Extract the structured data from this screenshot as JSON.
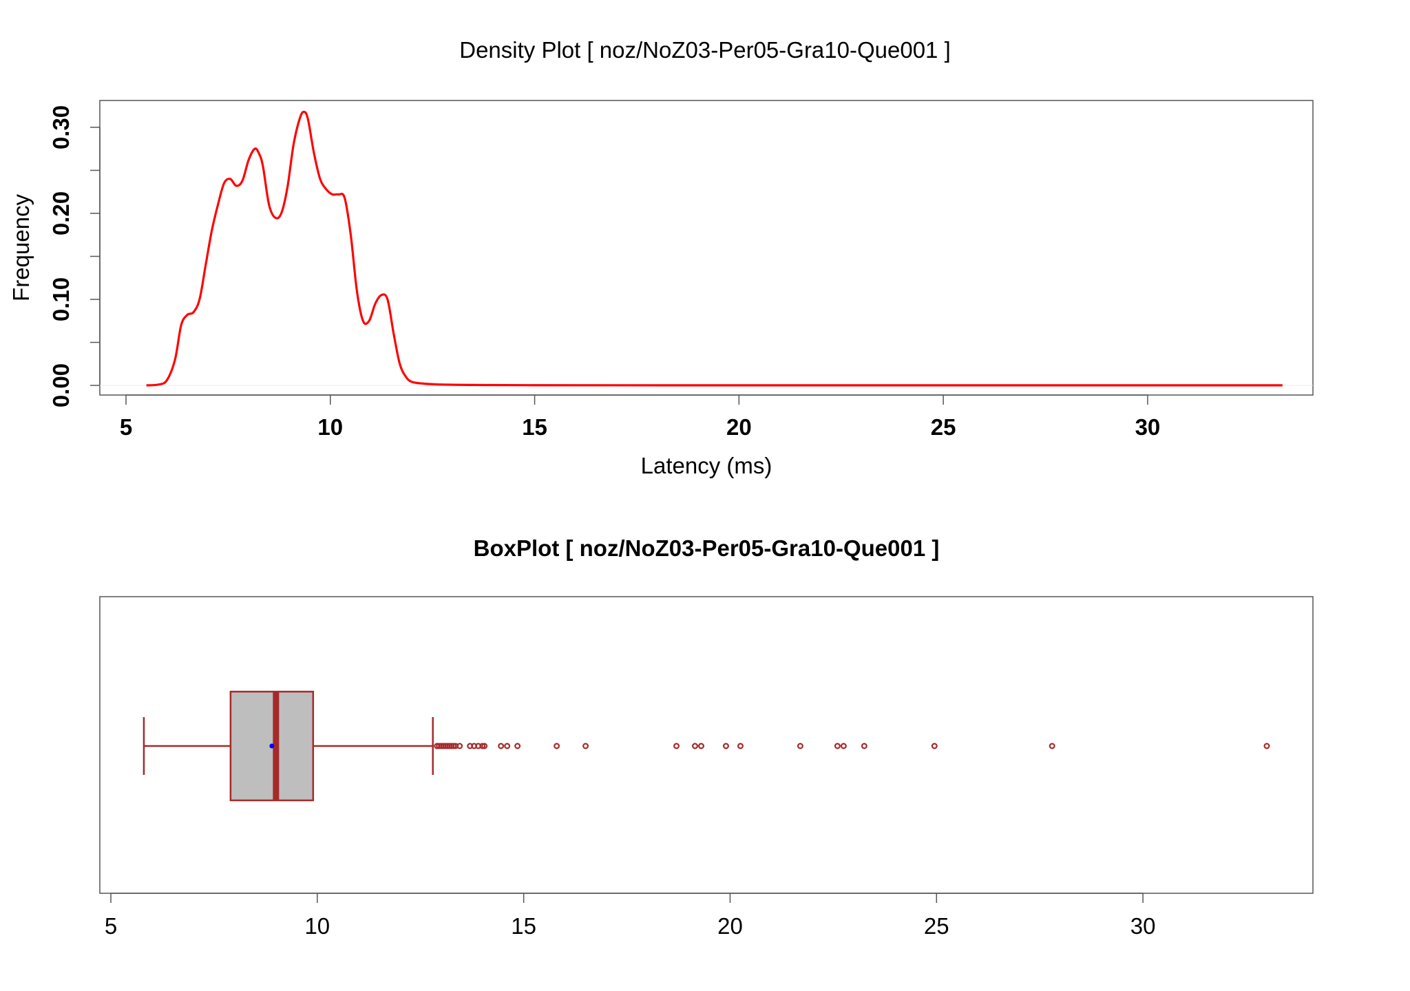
{
  "chart_data": [
    {
      "type": "line",
      "title": "Density Plot [ noz/NoZ03-Per05-Gra10-Que001 ]",
      "xlabel": "Latency (ms)",
      "ylabel": "Frequency",
      "xlim": [
        5,
        33
      ],
      "ylim": [
        0,
        0.32
      ],
      "xticks": [
        5,
        10,
        15,
        20,
        25,
        30
      ],
      "xtick_labels": [
        "5",
        "10",
        "15",
        "20",
        "25",
        "30"
      ],
      "yticks": [
        0,
        0.1,
        0.2,
        0.3
      ],
      "ytick_labels": [
        "0.00",
        "0.10",
        "0.20",
        "0.30"
      ],
      "grid": false,
      "line_color": "#ff0000",
      "series": [
        {
          "x": [
            5.5,
            5.8,
            6.0,
            6.2,
            6.35,
            6.5,
            6.65,
            6.8,
            6.95,
            7.1,
            7.25,
            7.4,
            7.55,
            7.7,
            7.85,
            8.0,
            8.15,
            8.25,
            8.35,
            8.5,
            8.65,
            8.8,
            8.95,
            9.1,
            9.25,
            9.35,
            9.45,
            9.6,
            9.75,
            9.9,
            10.05,
            10.2,
            10.35,
            10.5,
            10.65,
            10.8,
            10.95,
            11.1,
            11.25,
            11.4,
            11.55,
            11.7,
            11.85,
            12.0,
            12.3,
            12.7,
            13.5,
            15,
            20,
            25,
            30,
            33.3
          ],
          "y": [
            0.0,
            0.001,
            0.006,
            0.03,
            0.07,
            0.082,
            0.085,
            0.1,
            0.14,
            0.18,
            0.21,
            0.235,
            0.24,
            0.232,
            0.238,
            0.262,
            0.275,
            0.27,
            0.255,
            0.21,
            0.195,
            0.2,
            0.23,
            0.28,
            0.31,
            0.318,
            0.31,
            0.27,
            0.24,
            0.228,
            0.222,
            0.222,
            0.218,
            0.175,
            0.11,
            0.075,
            0.075,
            0.095,
            0.105,
            0.1,
            0.06,
            0.025,
            0.01,
            0.004,
            0.002,
            0.001,
            0.0005,
            0.0002,
            0.0001,
            0.0001,
            0.0001,
            0.0001
          ]
        }
      ]
    },
    {
      "type": "boxplot",
      "title": "BoxPlot [ noz/NoZ03-Per05-Gra10-Que001 ]",
      "xlim": [
        5,
        33
      ],
      "xticks": [
        5,
        10,
        15,
        20,
        25,
        30
      ],
      "xtick_labels": [
        "5",
        "10",
        "15",
        "20",
        "25",
        "30"
      ],
      "grid": false,
      "box_fill": "#bebebe",
      "box_color": "#a52a2a",
      "mean_color": "#0000ff",
      "whisker_low": 5.8,
      "q1": 7.9,
      "median": 9.0,
      "mean": 8.9,
      "q3": 9.9,
      "whisker_high": 12.8,
      "outliers": [
        12.9,
        12.95,
        13.0,
        13.05,
        13.1,
        13.15,
        13.2,
        13.25,
        13.3,
        13.35,
        13.45,
        13.7,
        13.8,
        13.9,
        14.0,
        14.05,
        14.45,
        14.6,
        14.85,
        15.8,
        16.5,
        18.7,
        19.15,
        19.3,
        19.9,
        20.25,
        21.7,
        22.6,
        22.75,
        23.25,
        24.95,
        27.8,
        33.0
      ]
    }
  ]
}
